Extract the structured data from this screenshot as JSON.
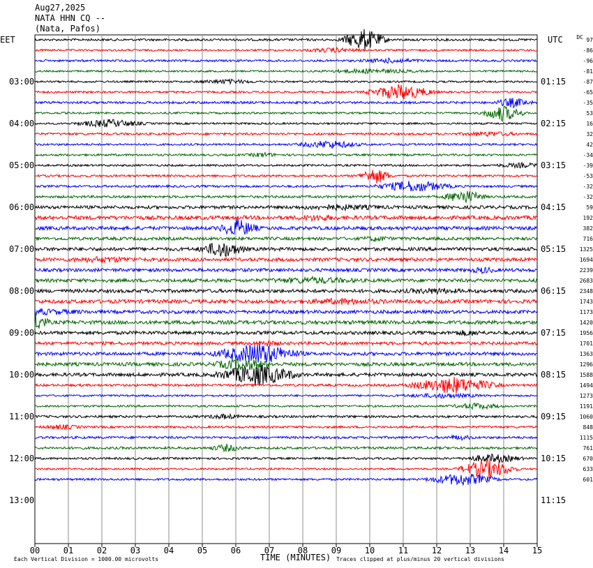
{
  "header": {
    "date": "Aug27,2025",
    "station": "NATA HHN CQ --",
    "location": "(Nata, Pafos)"
  },
  "left_tz": "EET",
  "right_tz": "UTC",
  "dc_label": "DC",
  "footer": {
    "x_label": "TIME (MINUTES)",
    "scale_note": "Each Vertical Division = 1000.00 microvolts",
    "clip_note": "Traces clipped at plus/minus 20 vertical divisions"
  },
  "colors": {
    "trace_cycle": [
      "#000000",
      "#ff0000",
      "#0000ff",
      "#006600"
    ],
    "grid": "#8c8c8c"
  },
  "chart_data": {
    "type": "line",
    "title": "",
    "xlabel": "TIME (MINUTES)",
    "xlim": [
      0,
      15
    ],
    "x_ticks": [
      "00",
      "01",
      "02",
      "03",
      "04",
      "05",
      "06",
      "07",
      "08",
      "09",
      "10",
      "11",
      "12",
      "13",
      "14",
      "15"
    ],
    "rows_total": 48,
    "rows_with_data": 43,
    "left_hour_labels": [
      "03:00",
      "04:00",
      "05:00",
      "06:00",
      "07:00",
      "08:00",
      "09:00",
      "10:00",
      "11:00",
      "12:00",
      "13:00"
    ],
    "right_hour_labels": [
      "01:15",
      "02:15",
      "03:15",
      "04:15",
      "05:15",
      "06:15",
      "07:15",
      "08:15",
      "09:15",
      "10:15",
      "11:15"
    ],
    "dc_offsets": [
      "97",
      "-86",
      "-96",
      "-81",
      "-87",
      "-65",
      "-35",
      "53",
      "16",
      "32",
      "42",
      "-34",
      "-39",
      "-53",
      "-32",
      "-32",
      "59",
      "192",
      "382",
      "716",
      "1325",
      "1694",
      "2239",
      "2683",
      "2348",
      "1743",
      "1173",
      "1420",
      "1956",
      "1701",
      "1363",
      "1296",
      "1588",
      "1494",
      "1273",
      "1191",
      "1060",
      "848",
      "1115",
      "761",
      "670",
      "633",
      "601"
    ]
  }
}
